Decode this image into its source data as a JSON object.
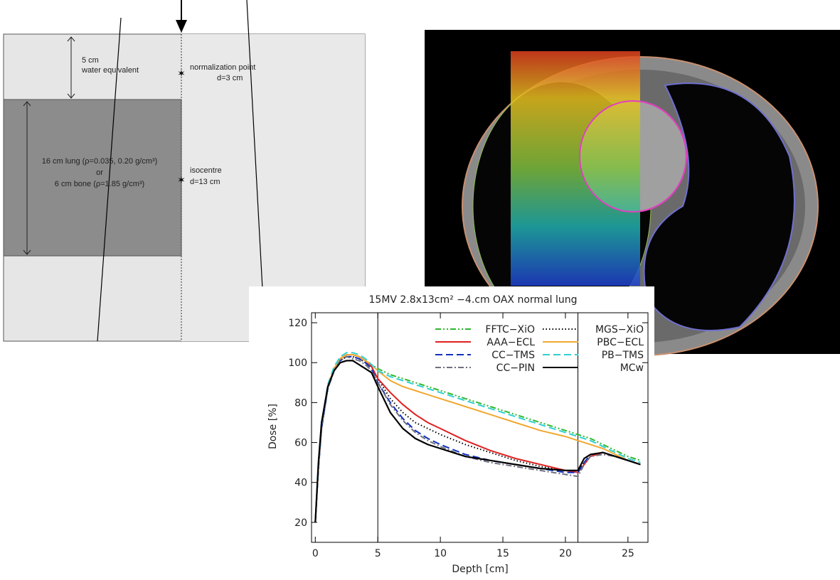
{
  "diagram": {
    "top_layer": [
      "5 cm",
      "water equivalent"
    ],
    "normalization": [
      "normalization point",
      "d=3 cm"
    ],
    "insert": [
      "16 cm lung (ρ=0.035, 0.20 g/cm³)",
      "or",
      "6 cm bone (ρ=1.85 g/cm³)"
    ],
    "isocentre": [
      "isocentre",
      "d=13 cm"
    ]
  },
  "chart_data": {
    "type": "line",
    "title": "15MV 2.8x13cm² −4.cm OAX normal lung",
    "x_label": "Depth [cm]",
    "y_label": "Dose [%]",
    "xlim": [
      -0.3,
      26.6
    ],
    "ylim": [
      10,
      125
    ],
    "xticks": [
      0,
      5,
      10,
      15,
      20,
      25
    ],
    "yticks": [
      20,
      40,
      60,
      80,
      100,
      120
    ],
    "vlines": [
      5,
      21
    ],
    "x": [
      0,
      0.25,
      0.5,
      1,
      1.5,
      2,
      2.5,
      3,
      3.5,
      4,
      4.5,
      5,
      6,
      7,
      8,
      9,
      10,
      12,
      14,
      16,
      18,
      20,
      21,
      21.5,
      22,
      23,
      24,
      25,
      26
    ],
    "series": [
      {
        "name": "FFTC−XiO",
        "color": "#2db82d",
        "dash": "dashdotdot",
        "values": [
          20,
          48,
          68,
          88,
          97,
          102,
          104,
          104,
          103,
          101,
          99,
          97,
          94,
          92,
          90,
          88,
          86,
          82,
          78,
          74,
          70,
          66,
          64,
          63,
          62,
          59,
          56,
          53,
          51
        ]
      },
      {
        "name": "MGS−XiO",
        "color": "#000000",
        "dash": "dotted",
        "values": [
          20,
          47,
          67,
          87,
          96,
          101,
          103,
          103,
          102,
          100,
          98,
          92,
          82,
          75,
          70,
          67,
          64,
          59,
          55,
          51,
          48,
          46,
          46,
          50,
          53,
          55,
          53,
          51,
          49
        ]
      },
      {
        "name": "AAA−ECL",
        "color": "#e02020",
        "dash": "solid",
        "values": [
          20,
          48,
          68,
          88,
          97,
          102,
          104,
          104,
          103,
          101,
          98,
          92,
          85,
          79,
          74,
          70,
          67,
          61,
          56,
          52,
          49,
          46,
          45,
          49,
          53,
          55,
          53,
          51,
          49
        ]
      },
      {
        "name": "PBC−ECL",
        "color": "#f0a830",
        "dash": "solid",
        "values": [
          20,
          48,
          68,
          88,
          97,
          102,
          104,
          104,
          103,
          101,
          99,
          96,
          91,
          88,
          86,
          84,
          82,
          78,
          74,
          70,
          66,
          63,
          61,
          60,
          59,
          57,
          54,
          51,
          49
        ]
      },
      {
        "name": "CC−TMS",
        "color": "#1030c0",
        "dash": "dashed",
        "values": [
          20,
          47,
          67,
          87,
          96,
          101,
          103,
          103,
          102,
          100,
          97,
          90,
          80,
          72,
          66,
          62,
          59,
          54,
          51,
          49,
          47,
          45,
          45,
          50,
          54,
          55,
          53,
          51,
          49
        ]
      },
      {
        "name": "PB−TMS",
        "color": "#30d0d0",
        "dash": "dashed",
        "values": [
          20,
          48,
          69,
          89,
          98,
          103,
          105,
          105,
          104,
          102,
          99,
          96,
          93,
          91,
          89,
          87,
          85,
          81,
          77,
          73,
          69,
          65,
          63,
          62,
          61,
          58,
          55,
          52,
          50
        ]
      },
      {
        "name": "CC−PIN",
        "color": "#707080",
        "dash": "dashdot",
        "values": [
          20,
          47,
          67,
          87,
          96,
          101,
          103,
          102,
          101,
          99,
          96,
          90,
          79,
          71,
          65,
          61,
          58,
          53,
          50,
          48,
          46,
          44,
          43,
          49,
          53,
          54,
          53,
          51,
          49
        ]
      },
      {
        "name": "MCw",
        "color": "#000000",
        "dash": "solid",
        "values": [
          20,
          50,
          70,
          88,
          96,
          100,
          101,
          101,
          99,
          97,
          95,
          88,
          75,
          67,
          62,
          59,
          57,
          53,
          51,
          49,
          47,
          46,
          46,
          52,
          54,
          55,
          53,
          51,
          49
        ]
      }
    ]
  }
}
